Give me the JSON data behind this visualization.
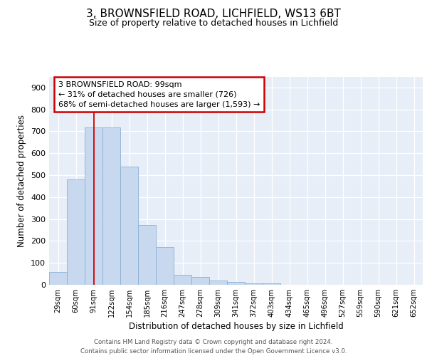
{
  "title1": "3, BROWNSFIELD ROAD, LICHFIELD, WS13 6BT",
  "title2": "Size of property relative to detached houses in Lichfield",
  "xlabel": "Distribution of detached houses by size in Lichfield",
  "ylabel": "Number of detached properties",
  "bar_labels": [
    "29sqm",
    "60sqm",
    "91sqm",
    "122sqm",
    "154sqm",
    "185sqm",
    "216sqm",
    "247sqm",
    "278sqm",
    "309sqm",
    "341sqm",
    "372sqm",
    "403sqm",
    "434sqm",
    "465sqm",
    "496sqm",
    "527sqm",
    "559sqm",
    "590sqm",
    "621sqm",
    "652sqm"
  ],
  "bar_values": [
    60,
    480,
    718,
    718,
    540,
    272,
    172,
    47,
    35,
    18,
    13,
    7,
    7,
    0,
    0,
    0,
    0,
    0,
    0,
    0,
    0
  ],
  "bar_color": "#c8d9ef",
  "bar_edge_color": "#8ab0d4",
  "annotation_text": "3 BROWNSFIELD ROAD: 99sqm\n← 31% of detached houses are smaller (726)\n68% of semi-detached houses are larger (1,593) →",
  "annotation_box_color": "#ffffff",
  "annotation_box_edge": "#cc0000",
  "red_line_color": "#cc0000",
  "ylim": [
    0,
    950
  ],
  "yticks": [
    0,
    100,
    200,
    300,
    400,
    500,
    600,
    700,
    800,
    900
  ],
  "footer": "Contains HM Land Registry data © Crown copyright and database right 2024.\nContains public sector information licensed under the Open Government Licence v3.0.",
  "bg_color": "#e8eef8",
  "grid_color": "#ffffff",
  "title1_fontsize": 11,
  "title2_fontsize": 9
}
